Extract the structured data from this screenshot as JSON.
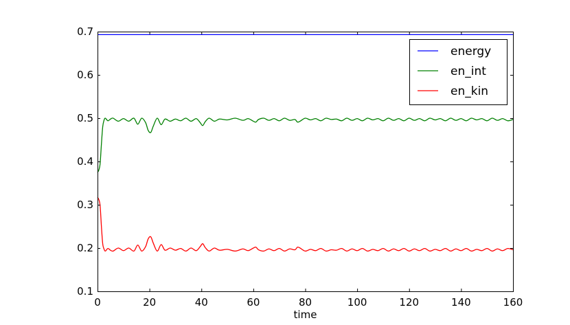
{
  "chart_data": {
    "type": "line",
    "title": "",
    "xlabel": "time",
    "ylabel": "",
    "xlim": [
      0,
      160
    ],
    "ylim": [
      0.1,
      0.7
    ],
    "xticks": [
      0,
      20,
      40,
      60,
      80,
      100,
      120,
      140,
      160
    ],
    "yticks": [
      0.1,
      0.2,
      0.3,
      0.4,
      0.5,
      0.6,
      0.7
    ],
    "grid": false,
    "legend_position": "top-right",
    "series": [
      {
        "name": "energy",
        "color": "#0000ff",
        "x": [
          0,
          160
        ],
        "y": [
          0.693,
          0.693
        ]
      },
      {
        "name": "en_int",
        "color": "#008000",
        "x": [
          0,
          0.5,
          1,
          1.5,
          2,
          2.5,
          3,
          4,
          5,
          6,
          8,
          10,
          12,
          14,
          15.5,
          17,
          18.5,
          19.5,
          20.5,
          21.5,
          23,
          24.5,
          26,
          28,
          30,
          32,
          34,
          36,
          38,
          39.5,
          40.5,
          41.5,
          43,
          45,
          47,
          50,
          53,
          56,
          58,
          60,
          61,
          62,
          64,
          66,
          68,
          70,
          72,
          74,
          76,
          77,
          78,
          80,
          82,
          84,
          86,
          88,
          90,
          92,
          94,
          96,
          98,
          100,
          102,
          104,
          106,
          108,
          110,
          112,
          114,
          116,
          118,
          120,
          122,
          124,
          126,
          128,
          130,
          132,
          134,
          136,
          138,
          140,
          142,
          144,
          146,
          148,
          150,
          152,
          154,
          156,
          158,
          160
        ],
        "y": [
          0.375,
          0.38,
          0.395,
          0.44,
          0.48,
          0.495,
          0.5,
          0.494,
          0.498,
          0.5,
          0.493,
          0.499,
          0.493,
          0.5,
          0.486,
          0.5,
          0.49,
          0.472,
          0.467,
          0.482,
          0.5,
          0.485,
          0.498,
          0.493,
          0.498,
          0.494,
          0.5,
          0.493,
          0.499,
          0.49,
          0.483,
          0.492,
          0.5,
          0.493,
          0.498,
          0.496,
          0.5,
          0.495,
          0.499,
          0.493,
          0.491,
          0.497,
          0.5,
          0.495,
          0.499,
          0.494,
          0.5,
          0.495,
          0.497,
          0.491,
          0.493,
          0.5,
          0.496,
          0.499,
          0.494,
          0.5,
          0.497,
          0.498,
          0.494,
          0.5,
          0.495,
          0.499,
          0.494,
          0.5,
          0.496,
          0.499,
          0.494,
          0.5,
          0.495,
          0.499,
          0.494,
          0.5,
          0.495,
          0.499,
          0.494,
          0.5,
          0.496,
          0.499,
          0.494,
          0.5,
          0.495,
          0.499,
          0.494,
          0.5,
          0.496,
          0.499,
          0.494,
          0.5,
          0.495,
          0.499,
          0.494,
          0.497
        ]
      },
      {
        "name": "en_kin",
        "color": "#ff0000",
        "x": [
          0,
          0.5,
          1,
          1.5,
          2,
          2.5,
          3,
          4,
          5,
          6,
          8,
          10,
          12,
          14,
          15.5,
          17,
          18.5,
          19.5,
          20.5,
          21.5,
          23,
          24.5,
          26,
          28,
          30,
          32,
          34,
          36,
          38,
          39.5,
          40.5,
          41.5,
          43,
          45,
          47,
          50,
          53,
          56,
          58,
          60,
          61,
          62,
          64,
          66,
          68,
          70,
          72,
          74,
          76,
          77,
          78,
          80,
          82,
          84,
          86,
          88,
          90,
          92,
          94,
          96,
          98,
          100,
          102,
          104,
          106,
          108,
          110,
          112,
          114,
          116,
          118,
          120,
          122,
          124,
          126,
          128,
          130,
          132,
          134,
          136,
          138,
          140,
          142,
          144,
          146,
          148,
          150,
          152,
          154,
          156,
          158,
          160
        ],
        "y": [
          0.317,
          0.312,
          0.298,
          0.25,
          0.21,
          0.198,
          0.193,
          0.199,
          0.195,
          0.193,
          0.2,
          0.194,
          0.2,
          0.193,
          0.207,
          0.193,
          0.203,
          0.221,
          0.226,
          0.211,
          0.193,
          0.208,
          0.195,
          0.2,
          0.195,
          0.199,
          0.193,
          0.2,
          0.194,
          0.203,
          0.21,
          0.201,
          0.193,
          0.2,
          0.195,
          0.197,
          0.193,
          0.198,
          0.194,
          0.2,
          0.202,
          0.196,
          0.193,
          0.198,
          0.194,
          0.199,
          0.193,
          0.198,
          0.196,
          0.202,
          0.2,
          0.193,
          0.197,
          0.194,
          0.199,
          0.193,
          0.196,
          0.195,
          0.199,
          0.193,
          0.198,
          0.194,
          0.199,
          0.193,
          0.197,
          0.194,
          0.199,
          0.193,
          0.198,
          0.194,
          0.199,
          0.193,
          0.198,
          0.194,
          0.199,
          0.193,
          0.197,
          0.194,
          0.199,
          0.193,
          0.198,
          0.194,
          0.199,
          0.193,
          0.197,
          0.194,
          0.199,
          0.193,
          0.198,
          0.194,
          0.199,
          0.196
        ]
      }
    ]
  }
}
